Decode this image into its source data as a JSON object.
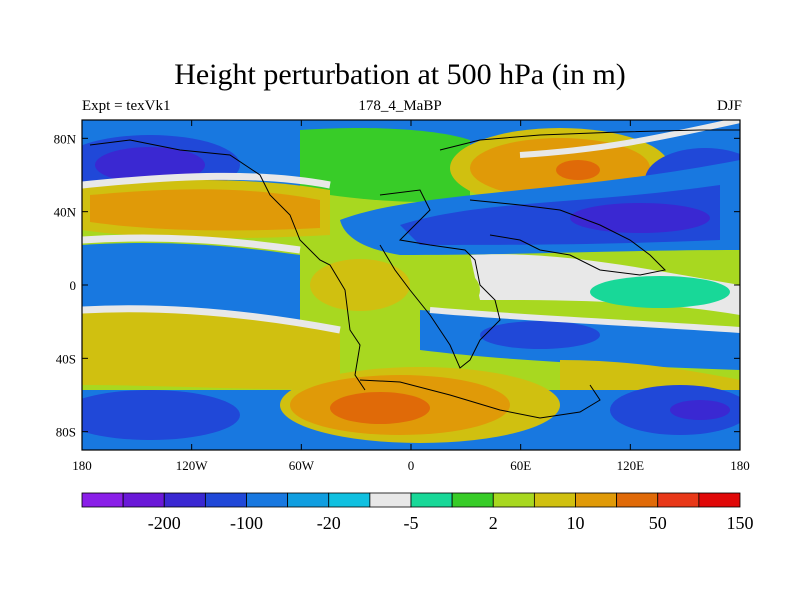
{
  "chart_data": {
    "type": "contour-map",
    "title": "Height perturbation at 500 hPa (in m)",
    "left_string": "Expt = texVk1",
    "center_string": "178_4_MaBP",
    "right_string": "DJF",
    "x_ticks": [
      "180",
      "120W",
      "60W",
      "0",
      "60E",
      "120E",
      "180"
    ],
    "x_tick_values": [
      -180,
      -120,
      -60,
      0,
      60,
      120,
      180
    ],
    "y_ticks": [
      "80N",
      "40N",
      "0",
      "40S",
      "80S"
    ],
    "y_tick_values": [
      80,
      40,
      0,
      -40,
      -80
    ],
    "xlim": [
      -180,
      180
    ],
    "ylim": [
      -90,
      90
    ],
    "colorbar_labels": [
      "-200",
      "-100",
      "-20",
      "-5",
      "2",
      "10",
      "50",
      "150"
    ],
    "colorbar_colors": [
      "#8a1fe8",
      "#6a18d8",
      "#3a28d2",
      "#2048d8",
      "#1878e0",
      "#109ee0",
      "#10c0e0",
      "#e8e8e8",
      "#18d898",
      "#38cc28",
      "#a8d820",
      "#d0c010",
      "#e09a08",
      "#e06a08",
      "#e83818",
      "#e00808"
    ]
  }
}
